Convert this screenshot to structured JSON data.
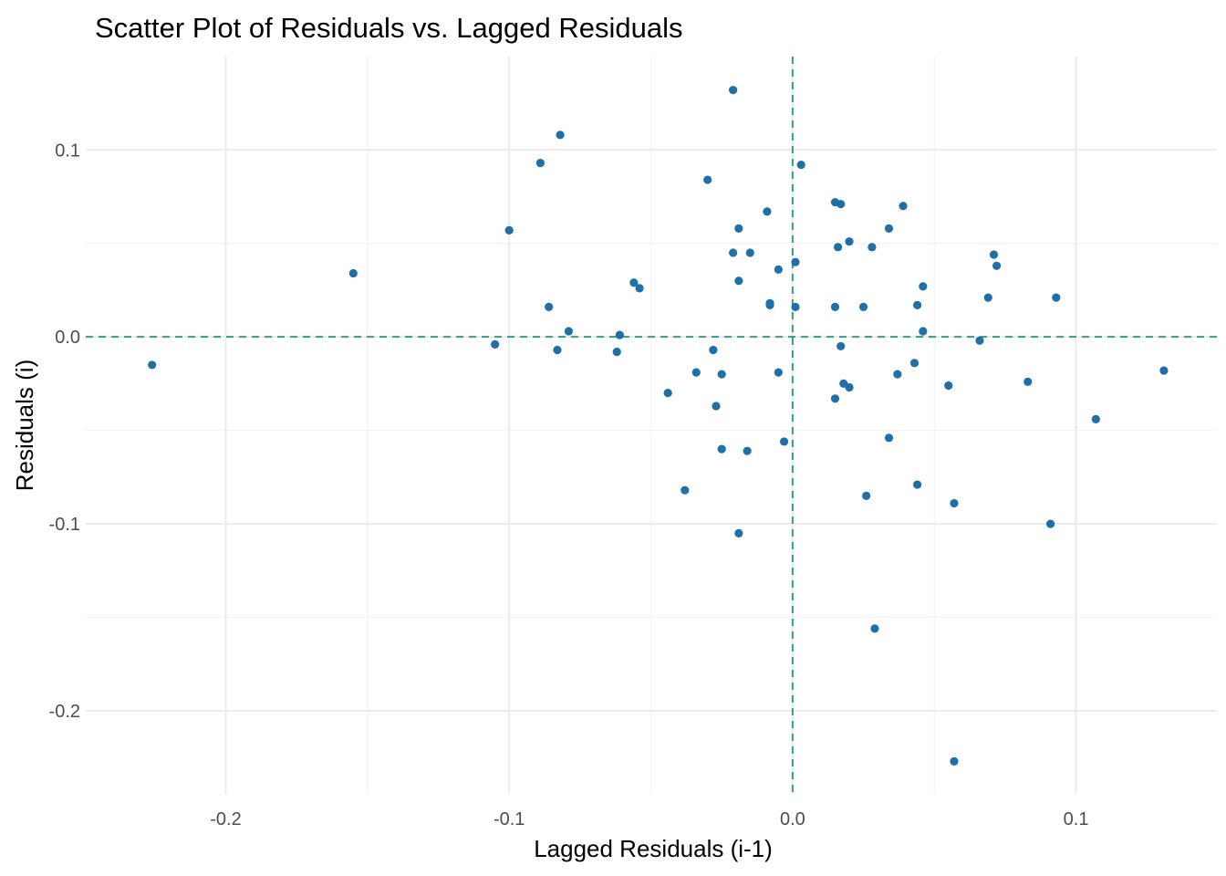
{
  "chart_data": {
    "type": "scatter",
    "title": "Scatter Plot of Residuals vs. Lagged Residuals",
    "xlabel": "Lagged Residuals (i-1)",
    "ylabel": "Residuals (i)",
    "xlim": [
      -0.2494,
      0.1497
    ],
    "ylim": [
      -0.2444,
      0.1499
    ],
    "x_ticks": [
      -0.2,
      -0.1,
      0.0,
      0.1
    ],
    "x_tick_labels": [
      "-0.2",
      "-0.1",
      "0.0",
      "0.1"
    ],
    "y_ticks": [
      -0.2,
      -0.1,
      0.0,
      0.1
    ],
    "y_tick_labels": [
      "-0.2",
      "-0.1",
      "0.0",
      "0.1"
    ],
    "x_minor": [
      -0.15,
      -0.05,
      0.05
    ],
    "y_minor": [
      -0.15,
      -0.05,
      0.05
    ],
    "reference_lines": {
      "x": 0,
      "y": 0,
      "style": "dashed"
    },
    "point_color": "#1f6fa8",
    "reference_color": "#3a9b82",
    "grid": true,
    "points": [
      [
        -0.226,
        -0.015
      ],
      [
        -0.155,
        0.034
      ],
      [
        -0.105,
        -0.004
      ],
      [
        -0.1,
        0.057
      ],
      [
        -0.089,
        0.093
      ],
      [
        -0.086,
        0.016
      ],
      [
        -0.082,
        0.108
      ],
      [
        -0.083,
        -0.007
      ],
      [
        -0.079,
        0.003
      ],
      [
        -0.061,
        0.001
      ],
      [
        -0.062,
        -0.008
      ],
      [
        -0.056,
        0.029
      ],
      [
        -0.054,
        0.026
      ],
      [
        -0.044,
        -0.03
      ],
      [
        -0.038,
        -0.082
      ],
      [
        -0.034,
        -0.019
      ],
      [
        -0.03,
        0.084
      ],
      [
        -0.028,
        -0.007
      ],
      [
        -0.027,
        -0.037
      ],
      [
        -0.025,
        -0.06
      ],
      [
        -0.025,
        -0.02
      ],
      [
        -0.021,
        0.132
      ],
      [
        -0.021,
        0.045
      ],
      [
        -0.019,
        0.058
      ],
      [
        -0.019,
        0.03
      ],
      [
        -0.019,
        -0.105
      ],
      [
        -0.015,
        0.045
      ],
      [
        -0.016,
        -0.061
      ],
      [
        -0.009,
        0.067
      ],
      [
        -0.008,
        0.017
      ],
      [
        -0.008,
        0.018
      ],
      [
        -0.005,
        0.036
      ],
      [
        -0.005,
        -0.019
      ],
      [
        -0.003,
        -0.056
      ],
      [
        0.001,
        0.016
      ],
      [
        0.001,
        0.04
      ],
      [
        0.003,
        0.092
      ],
      [
        0.015,
        0.072
      ],
      [
        0.017,
        0.071
      ],
      [
        0.016,
        0.048
      ],
      [
        0.02,
        0.051
      ],
      [
        0.015,
        0.016
      ],
      [
        0.017,
        -0.005
      ],
      [
        0.018,
        -0.025
      ],
      [
        0.02,
        -0.027
      ],
      [
        0.015,
        -0.033
      ],
      [
        0.025,
        0.016
      ],
      [
        0.026,
        -0.085
      ],
      [
        0.028,
        0.048
      ],
      [
        0.029,
        -0.156
      ],
      [
        0.034,
        0.058
      ],
      [
        0.039,
        0.07
      ],
      [
        0.037,
        -0.02
      ],
      [
        0.034,
        -0.054
      ],
      [
        0.043,
        -0.014
      ],
      [
        0.044,
        0.017
      ],
      [
        0.046,
        0.027
      ],
      [
        0.046,
        0.003
      ],
      [
        0.044,
        -0.079
      ],
      [
        0.055,
        -0.026
      ],
      [
        0.057,
        -0.089
      ],
      [
        0.057,
        -0.227
      ],
      [
        0.066,
        -0.002
      ],
      [
        0.069,
        0.021
      ],
      [
        0.071,
        0.044
      ],
      [
        0.072,
        0.038
      ],
      [
        0.083,
        -0.024
      ],
      [
        0.091,
        -0.1
      ],
      [
        0.093,
        0.021
      ],
      [
        0.107,
        -0.044
      ],
      [
        0.131,
        -0.018
      ]
    ]
  }
}
